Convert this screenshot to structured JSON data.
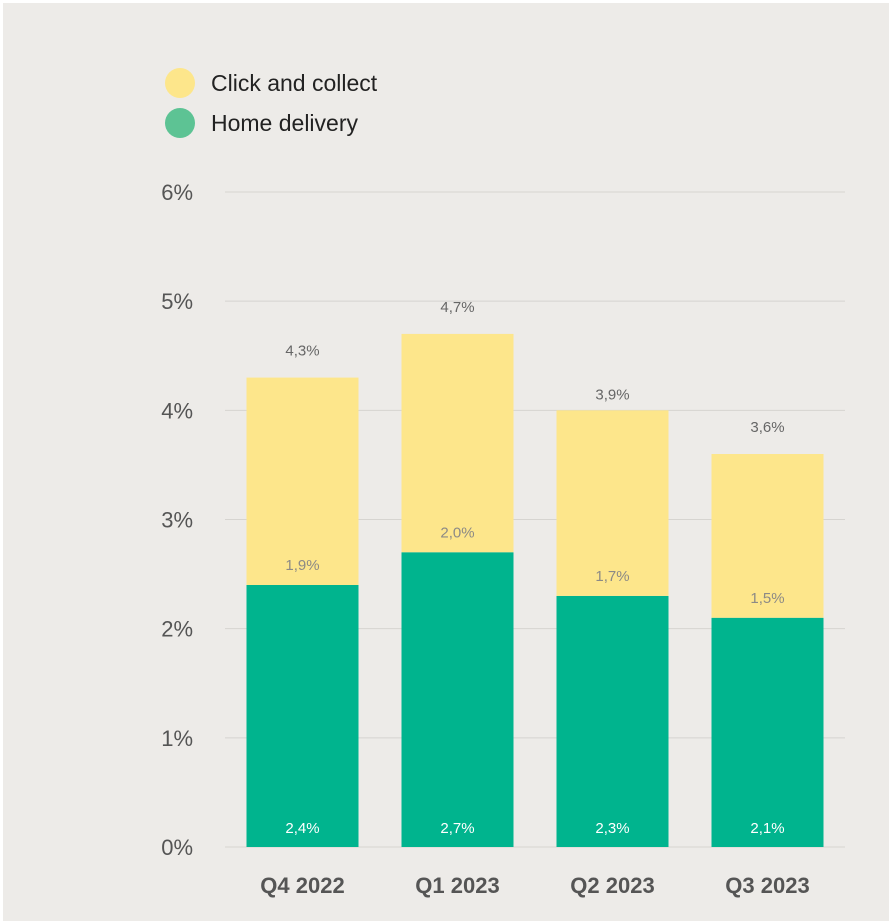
{
  "legend": [
    {
      "label": "Click and collect",
      "color": "#fde68b"
    },
    {
      "label": "Home delivery",
      "color": "#5dc394"
    }
  ],
  "chart_data": {
    "type": "bar",
    "stacked": true,
    "categories": [
      "Q4 2022",
      "Q1 2023",
      "Q2 2023",
      "Q3 2023"
    ],
    "series": [
      {
        "name": "Home delivery",
        "values": [
          2.4,
          2.7,
          2.3,
          2.1
        ],
        "labels": [
          "2,4%",
          "2,7%",
          "2,3%",
          "2,1%"
        ],
        "color": "#00b48e"
      },
      {
        "name": "Click and collect",
        "values": [
          1.9,
          2.0,
          1.7,
          1.5
        ],
        "labels": [
          "1,9%",
          "2,0%",
          "1,7%",
          "1,5%"
        ],
        "color": "#fde68b"
      }
    ],
    "totals": [
      4.3,
      4.7,
      3.9,
      3.6
    ],
    "total_labels": [
      "4,3%",
      "4,7%",
      "3,9%",
      "3,6%"
    ],
    "y_ticks": [
      "0%",
      "1%",
      "2%",
      "3%",
      "4%",
      "5%",
      "6%"
    ],
    "ylim": [
      0,
      6
    ],
    "grid": true,
    "legend_position": "top-left"
  }
}
